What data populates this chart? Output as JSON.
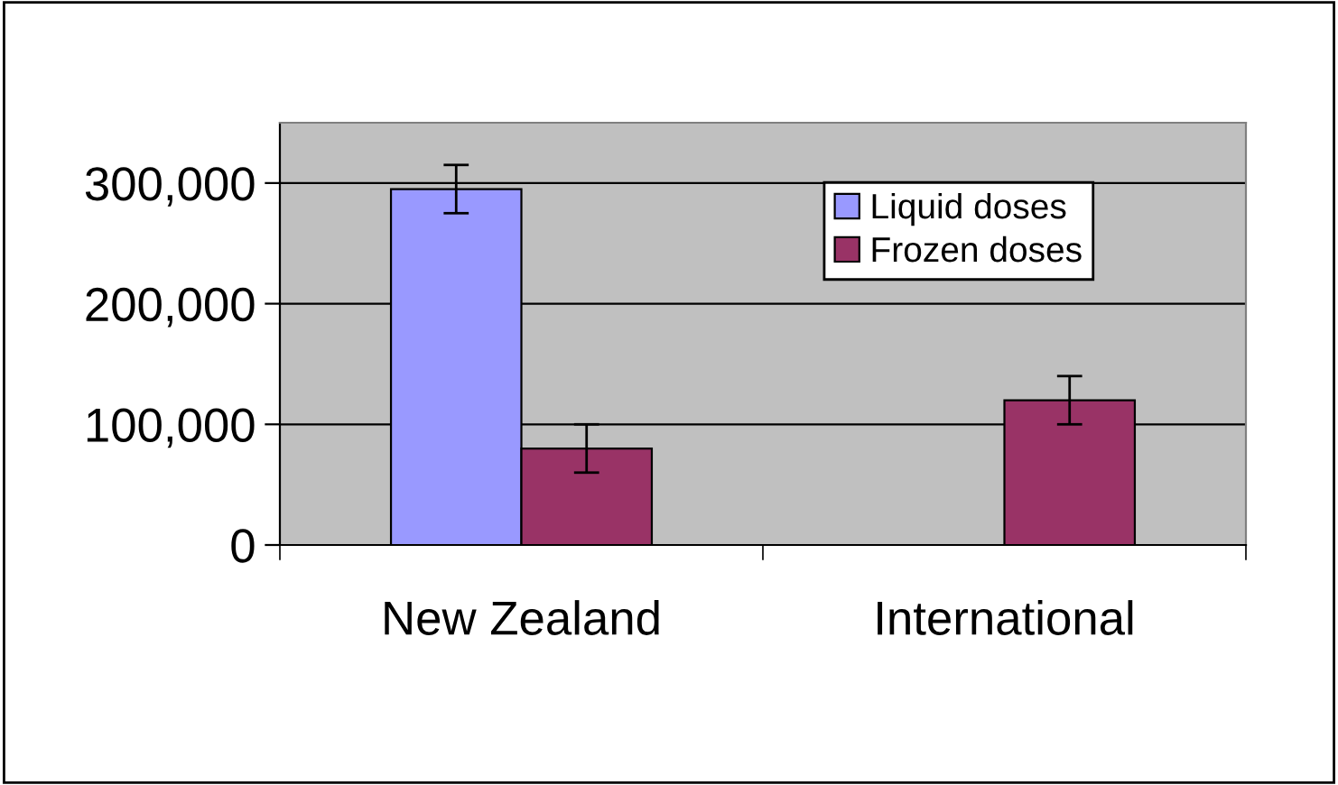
{
  "chart_data": {
    "type": "bar",
    "categories": [
      "New Zealand",
      "International"
    ],
    "series": [
      {
        "name": "Liquid doses",
        "color": "#9999ff",
        "values": [
          295000,
          null
        ],
        "errors": [
          20000,
          null
        ]
      },
      {
        "name": "Frozen doses",
        "color": "#993366",
        "values": [
          80000,
          120000
        ],
        "errors": [
          20000,
          20000
        ]
      }
    ],
    "ylim": [
      0,
      350000
    ],
    "yticks": [
      {
        "value": 0,
        "label": "0"
      },
      {
        "value": 100000,
        "label": "100,000"
      },
      {
        "value": 200000,
        "label": "200,000"
      },
      {
        "value": 300000,
        "label": "300,000"
      }
    ],
    "grid": "y",
    "legend": "top right"
  }
}
